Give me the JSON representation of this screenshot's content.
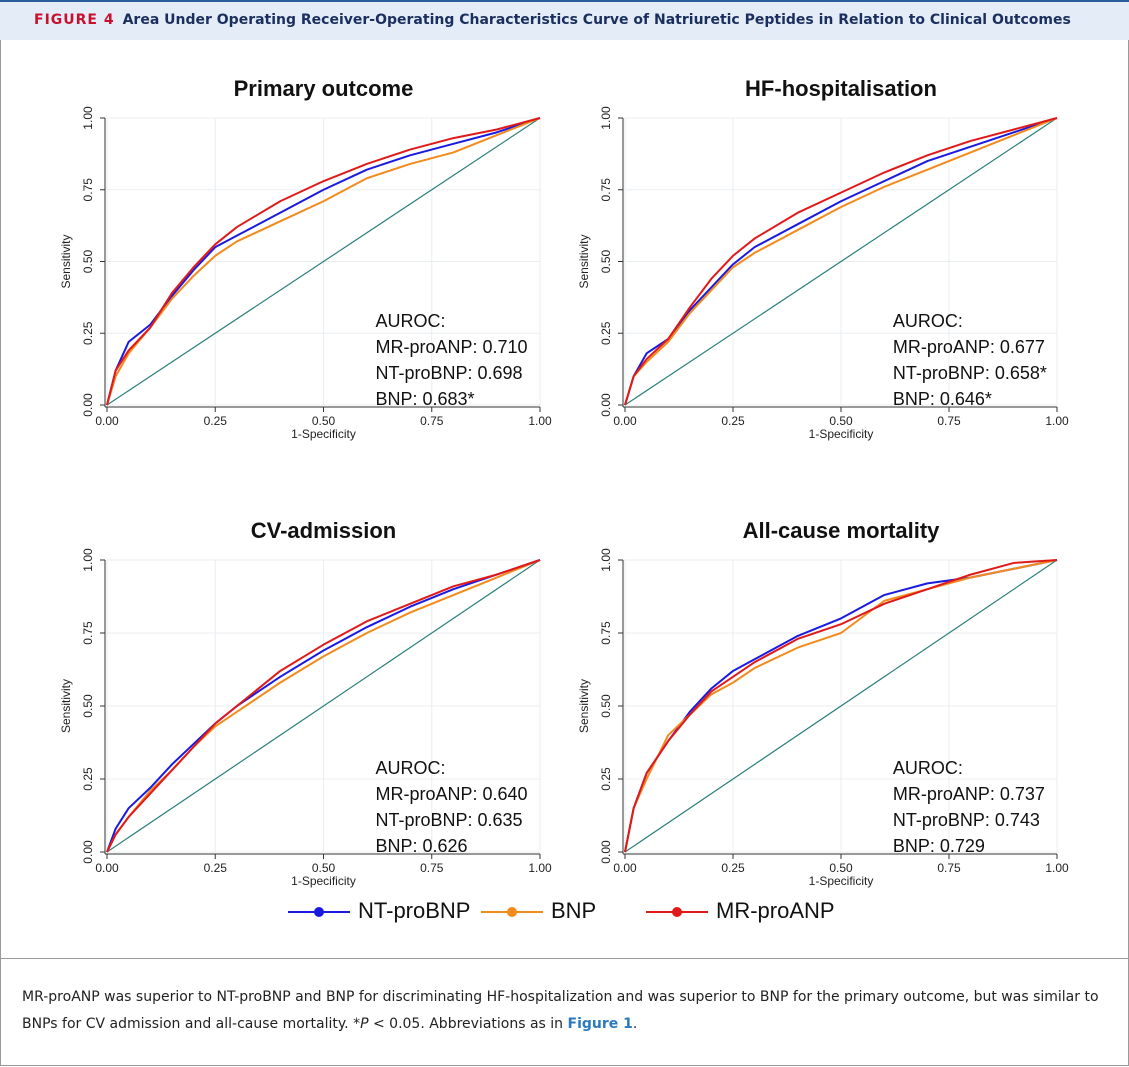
{
  "figure_label": "FIGURE 4",
  "figure_title": "Area Under Operating Receiver-Operating Characteristics Curve of Natriuretic Peptides in Relation to Clinical Outcomes",
  "legend": [
    {
      "name": "NT-proBNP",
      "color": "#1a1ae0"
    },
    {
      "name": "BNP",
      "color": "#f28a1c"
    },
    {
      "name": "MR-proANP",
      "color": "#e01a1a"
    }
  ],
  "caption": [
    "MR-proANP was superior to NT-proBNP and BNP for discriminating HF-hospitalization and was superior to BNP for the primary outcome, but was similar to BNPs for CV admission and all-cause mortality. *",
    "P",
    " < 0.05. Abbreviations as in ",
    "Figure 1",
    "."
  ],
  "chart_data": [
    {
      "type": "line",
      "title": "Primary outcome",
      "x_label": "1-Specificity",
      "y_label": "Sensitivity",
      "xlim": [
        0,
        1
      ],
      "ylim": [
        0,
        1
      ],
      "grid": true,
      "reference_line_color": "#2a7f7a",
      "xticks": [
        {
          "value": 0,
          "label": "0.00"
        },
        {
          "value": 0.25,
          "label": "0.25"
        },
        {
          "value": 0.5,
          "label": "0.50"
        },
        {
          "value": 0.75,
          "label": "0.75"
        },
        {
          "value": 1,
          "label": "1.00"
        }
      ],
      "yticks": [
        {
          "value": 0,
          "label": "0.00"
        },
        {
          "value": 0.25,
          "label": "0.25"
        },
        {
          "value": 0.5,
          "label": "0.50"
        },
        {
          "value": 0.75,
          "label": "0.75"
        },
        {
          "value": 1,
          "label": "1.00"
        }
      ],
      "x": [
        0,
        0.02,
        0.05,
        0.1,
        0.15,
        0.2,
        0.25,
        0.3,
        0.4,
        0.5,
        0.6,
        0.7,
        0.8,
        0.9,
        1
      ],
      "series": [
        {
          "color": "#1a1ae0",
          "values": [
            0,
            0.12,
            0.22,
            0.28,
            0.38,
            0.47,
            0.55,
            0.59,
            0.67,
            0.75,
            0.82,
            0.87,
            0.91,
            0.95,
            1
          ]
        },
        {
          "color": "#f28a1c",
          "values": [
            0,
            0.1,
            0.18,
            0.27,
            0.37,
            0.45,
            0.52,
            0.57,
            0.64,
            0.71,
            0.79,
            0.84,
            0.88,
            0.94,
            1
          ]
        },
        {
          "color": "#e01a1a",
          "values": [
            0,
            0.12,
            0.19,
            0.27,
            0.39,
            0.48,
            0.56,
            0.62,
            0.71,
            0.78,
            0.84,
            0.89,
            0.93,
            0.96,
            1
          ]
        }
      ],
      "annotations": [
        "AUROC:",
        "MR-proANP: 0.710",
        "NT-proBNP: 0.698",
        "BNP: 0.683*"
      ]
    },
    {
      "type": "line",
      "title": "HF-hospitalisation",
      "x_label": "1-Specificity",
      "y_label": "Sensitivity",
      "xlim": [
        0,
        1
      ],
      "ylim": [
        0,
        1
      ],
      "grid": true,
      "reference_line_color": "#2a7f7a",
      "xticks": [
        {
          "value": 0,
          "label": "0.00"
        },
        {
          "value": 0.25,
          "label": "0.25"
        },
        {
          "value": 0.5,
          "label": "0.50"
        },
        {
          "value": 0.75,
          "label": "0.75"
        },
        {
          "value": 1,
          "label": "1.00"
        }
      ],
      "yticks": [
        {
          "value": 0,
          "label": "0.00"
        },
        {
          "value": 0.25,
          "label": "0.25"
        },
        {
          "value": 0.5,
          "label": "0.50"
        },
        {
          "value": 0.75,
          "label": "0.75"
        },
        {
          "value": 1,
          "label": "1.00"
        }
      ],
      "x": [
        0,
        0.02,
        0.05,
        0.1,
        0.15,
        0.2,
        0.25,
        0.3,
        0.4,
        0.5,
        0.6,
        0.7,
        0.8,
        0.9,
        1
      ],
      "series": [
        {
          "color": "#1a1ae0",
          "values": [
            0,
            0.1,
            0.18,
            0.23,
            0.33,
            0.41,
            0.49,
            0.55,
            0.63,
            0.71,
            0.78,
            0.85,
            0.9,
            0.95,
            1
          ]
        },
        {
          "color": "#f28a1c",
          "values": [
            0,
            0.1,
            0.15,
            0.22,
            0.32,
            0.4,
            0.48,
            0.53,
            0.61,
            0.69,
            0.76,
            0.82,
            0.88,
            0.94,
            1
          ]
        },
        {
          "color": "#e01a1a",
          "values": [
            0,
            0.1,
            0.16,
            0.23,
            0.34,
            0.44,
            0.52,
            0.58,
            0.67,
            0.74,
            0.81,
            0.87,
            0.92,
            0.96,
            1
          ]
        }
      ],
      "annotations": [
        "AUROC:",
        "MR-proANP: 0.677",
        "NT-proBNP: 0.658*",
        "BNP: 0.646*"
      ]
    },
    {
      "type": "line",
      "title": "CV-admission",
      "x_label": "1-Specificity",
      "y_label": "Sensitivity",
      "xlim": [
        0,
        1
      ],
      "ylim": [
        0,
        1
      ],
      "grid": true,
      "reference_line_color": "#2a7f7a",
      "xticks": [
        {
          "value": 0,
          "label": "0.00"
        },
        {
          "value": 0.25,
          "label": "0.25"
        },
        {
          "value": 0.5,
          "label": "0.50"
        },
        {
          "value": 0.75,
          "label": "0.75"
        },
        {
          "value": 1,
          "label": "1.00"
        }
      ],
      "yticks": [
        {
          "value": 0,
          "label": "0.00"
        },
        {
          "value": 0.25,
          "label": "0.25"
        },
        {
          "value": 0.5,
          "label": "0.50"
        },
        {
          "value": 0.75,
          "label": "0.75"
        },
        {
          "value": 1,
          "label": "1.00"
        }
      ],
      "x": [
        0,
        0.02,
        0.05,
        0.1,
        0.15,
        0.2,
        0.25,
        0.3,
        0.4,
        0.5,
        0.6,
        0.7,
        0.8,
        0.9,
        1
      ],
      "series": [
        {
          "color": "#1a1ae0",
          "values": [
            0,
            0.08,
            0.15,
            0.22,
            0.3,
            0.37,
            0.44,
            0.5,
            0.6,
            0.69,
            0.77,
            0.84,
            0.9,
            0.95,
            1
          ]
        },
        {
          "color": "#f28a1c",
          "values": [
            0,
            0.06,
            0.12,
            0.21,
            0.28,
            0.36,
            0.43,
            0.48,
            0.58,
            0.67,
            0.75,
            0.82,
            0.88,
            0.94,
            1
          ]
        },
        {
          "color": "#e01a1a",
          "values": [
            0,
            0.06,
            0.12,
            0.2,
            0.28,
            0.36,
            0.44,
            0.5,
            0.62,
            0.71,
            0.79,
            0.85,
            0.91,
            0.95,
            1
          ]
        }
      ],
      "annotations": [
        "AUROC:",
        "MR-proANP: 0.640",
        "NT-proBNP: 0.635",
        "BNP: 0.626"
      ]
    },
    {
      "type": "line",
      "title": "All-cause mortality",
      "x_label": "1-Specificity",
      "y_label": "Sensitivity",
      "xlim": [
        0,
        1
      ],
      "ylim": [
        0,
        1
      ],
      "grid": true,
      "reference_line_color": "#2a7f7a",
      "xticks": [
        {
          "value": 0,
          "label": "0.00"
        },
        {
          "value": 0.25,
          "label": "0.25"
        },
        {
          "value": 0.5,
          "label": "0.50"
        },
        {
          "value": 0.75,
          "label": "0.75"
        },
        {
          "value": 1,
          "label": "1.00"
        }
      ],
      "yticks": [
        {
          "value": 0,
          "label": "0.00"
        },
        {
          "value": 0.25,
          "label": "0.25"
        },
        {
          "value": 0.5,
          "label": "0.50"
        },
        {
          "value": 0.75,
          "label": "0.75"
        },
        {
          "value": 1,
          "label": "1.00"
        }
      ],
      "x": [
        0,
        0.02,
        0.05,
        0.1,
        0.15,
        0.2,
        0.25,
        0.3,
        0.4,
        0.5,
        0.6,
        0.7,
        0.8,
        0.9,
        1
      ],
      "series": [
        {
          "color": "#1a1ae0",
          "values": [
            0,
            0.15,
            0.27,
            0.38,
            0.48,
            0.56,
            0.62,
            0.66,
            0.74,
            0.8,
            0.88,
            0.92,
            0.94,
            0.97,
            1
          ]
        },
        {
          "color": "#f28a1c",
          "values": [
            0,
            0.15,
            0.25,
            0.4,
            0.47,
            0.54,
            0.58,
            0.63,
            0.7,
            0.75,
            0.86,
            0.9,
            0.94,
            0.97,
            1
          ]
        },
        {
          "color": "#e01a1a",
          "values": [
            0,
            0.15,
            0.27,
            0.38,
            0.47,
            0.55,
            0.6,
            0.65,
            0.73,
            0.78,
            0.85,
            0.9,
            0.95,
            0.99,
            1
          ]
        }
      ],
      "annotations": [
        "AUROC:",
        "MR-proANP: 0.737",
        "NT-proBNP: 0.743",
        "BNP: 0.729"
      ]
    }
  ]
}
